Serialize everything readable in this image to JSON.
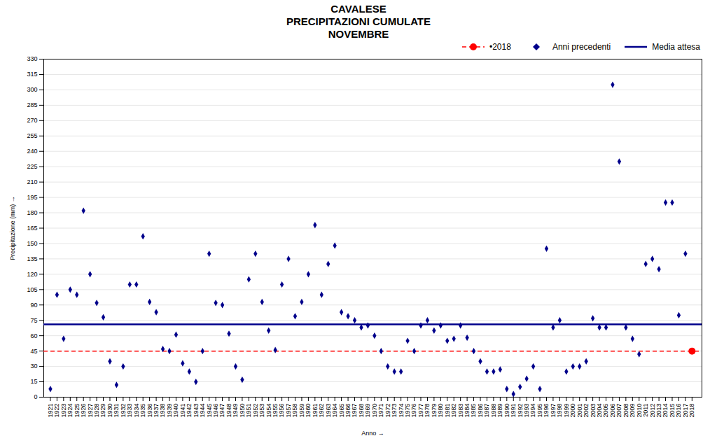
{
  "chart_data": {
    "type": "scatter",
    "title": "CAVALESE\nPRECIPITAZIONI CUMULATE\nNOVEMBRE",
    "xlabel": "Anno",
    "ylabel": "Precipitazione (mm)",
    "xlim": [
      1920.0,
      2019.5
    ],
    "xticks": [
      1921,
      1922,
      1923,
      1924,
      1925,
      1926,
      1927,
      1928,
      1929,
      1930,
      1931,
      1932,
      1933,
      1934,
      1935,
      1936,
      1937,
      1938,
      1939,
      1940,
      1941,
      1942,
      1943,
      1944,
      1945,
      1946,
      1947,
      1948,
      1949,
      1950,
      1951,
      1952,
      1953,
      1954,
      1955,
      1956,
      1957,
      1958,
      1959,
      1960,
      1961,
      1962,
      1963,
      1964,
      1965,
      1966,
      1967,
      1968,
      1969,
      1970,
      1971,
      1972,
      1973,
      1974,
      1975,
      1976,
      1977,
      1978,
      1979,
      1980,
      1981,
      1982,
      1983,
      1984,
      1985,
      1986,
      1987,
      1988,
      1989,
      1990,
      1991,
      1992,
      1993,
      1994,
      1995,
      1996,
      1997,
      1998,
      1999,
      2000,
      2001,
      2002,
      2003,
      2004,
      2005,
      2006,
      2007,
      2008,
      2009,
      2010,
      2011,
      2012,
      2013,
      2014,
      2015,
      2016,
      2017,
      2018
    ],
    "ylim": [
      0,
      330
    ],
    "yticks": [
      0,
      15,
      30,
      45,
      60,
      75,
      90,
      105,
      120,
      135,
      150,
      165,
      180,
      195,
      210,
      225,
      240,
      255,
      270,
      285,
      300,
      315,
      330
    ],
    "grid": true,
    "legend": "upper right",
    "series": [
      {
        "name": "•2018",
        "type": "scatter",
        "color": "#FF0000",
        "marker": "circle",
        "line_style": "dashed",
        "x": [
          2018
        ],
        "values": [
          45
        ]
      },
      {
        "name": "Anni precedenti",
        "type": "scatter",
        "color": "#00008B",
        "marker": "diamond",
        "x": [
          1921,
          1922,
          1923,
          1924,
          1925,
          1926,
          1927,
          1928,
          1929,
          1930,
          1931,
          1932,
          1933,
          1934,
          1935,
          1936,
          1937,
          1938,
          1939,
          1940,
          1941,
          1942,
          1943,
          1944,
          1945,
          1946,
          1947,
          1948,
          1949,
          1950,
          1951,
          1952,
          1953,
          1954,
          1955,
          1956,
          1957,
          1958,
          1959,
          1960,
          1961,
          1962,
          1963,
          1964,
          1965,
          1966,
          1967,
          1968,
          1969,
          1970,
          1971,
          1972,
          1973,
          1974,
          1975,
          1976,
          1977,
          1978,
          1979,
          1980,
          1981,
          1982,
          1983,
          1984,
          1985,
          1986,
          1987,
          1988,
          1989,
          1990,
          1991,
          1992,
          1993,
          1994,
          1995,
          1996,
          1997,
          1998,
          1999,
          2000,
          2001,
          2002,
          2003,
          2004,
          2005,
          2006,
          2007,
          2008,
          2009,
          2010,
          2011,
          2012,
          2013,
          2014,
          2015,
          2016,
          2017
        ],
        "values": [
          8,
          100,
          57,
          105,
          100,
          182,
          120,
          92,
          78,
          35,
          12,
          30,
          110,
          110,
          157,
          93,
          83,
          47,
          45,
          61,
          33,
          25,
          15,
          45,
          140,
          92,
          90,
          62,
          30,
          17,
          115,
          140,
          93,
          65,
          46,
          110,
          135,
          79,
          93,
          120,
          168,
          100,
          130,
          148,
          83,
          79,
          75,
          68,
          70,
          60,
          45,
          30,
          25,
          25,
          55,
          45,
          70,
          75,
          65,
          70,
          55,
          57,
          70,
          58,
          45,
          35,
          25,
          25,
          27,
          8,
          3,
          10,
          18,
          30,
          8,
          145,
          68,
          75,
          25,
          30,
          30,
          35,
          77,
          68,
          68,
          305,
          230,
          68,
          57,
          42,
          130,
          135,
          125,
          190,
          190,
          80,
          140
        ]
      },
      {
        "name": "Media attesa",
        "type": "hline",
        "color": "#00008B",
        "line_style": "solid",
        "values": [
          71
        ]
      }
    ]
  }
}
